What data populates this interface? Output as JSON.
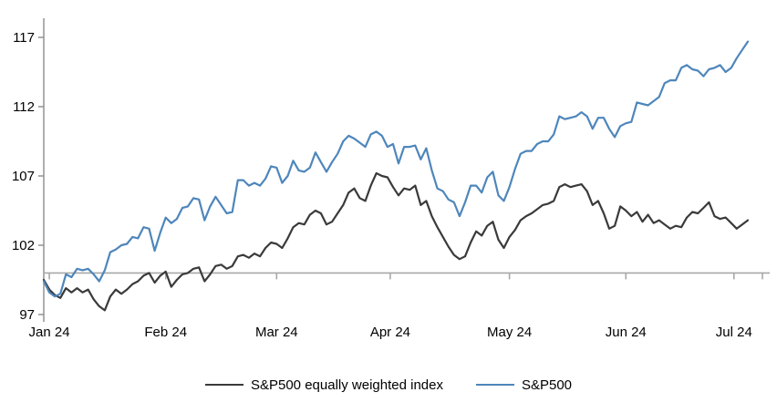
{
  "chart_data": {
    "type": "line",
    "title": "",
    "xlabel": "",
    "ylabel": "",
    "grid": "off",
    "legend_position": "bottom-center",
    "baseline_value": 100,
    "y_ticks": [
      97,
      102,
      107,
      112,
      117
    ],
    "ylim": [
      97,
      117
    ],
    "x_tick_labels": [
      "Jan 24",
      "Feb 24",
      "Mar 24",
      "Apr 24",
      "May 24",
      "Jun 24",
      "Jul 24"
    ],
    "x_tick_days": [
      1,
      22,
      42,
      62.5,
      84,
      105,
      124.5
    ],
    "x_axis_note": "daily index values, Jan 2 2024 = day 0, indexed to 100 at end-2023",
    "series": [
      {
        "name": "S&P500 equally weighted index",
        "color": "#3a3a3a",
        "values": [
          99.5,
          98.8,
          98.4,
          98.2,
          98.9,
          98.6,
          98.9,
          98.6,
          98.8,
          98.1,
          97.6,
          97.3,
          98.3,
          98.8,
          98.5,
          98.8,
          99.2,
          99.4,
          99.8,
          100.0,
          99.3,
          99.8,
          100.1,
          99.0,
          99.5,
          99.9,
          100.0,
          100.3,
          100.4,
          99.4,
          99.9,
          100.5,
          100.6,
          100.3,
          100.5,
          101.2,
          101.3,
          101.1,
          101.4,
          101.2,
          101.8,
          102.2,
          102.1,
          101.8,
          102.5,
          103.3,
          103.6,
          103.5,
          104.2,
          104.5,
          104.3,
          103.5,
          103.7,
          104.3,
          104.9,
          105.8,
          106.1,
          105.4,
          105.2,
          106.3,
          107.2,
          107.0,
          106.9,
          106.2,
          105.6,
          106.1,
          106.0,
          106.3,
          104.9,
          105.2,
          104.1,
          103.3,
          102.6,
          101.9,
          101.3,
          101.0,
          101.2,
          102.2,
          103.0,
          102.7,
          103.4,
          103.7,
          102.4,
          101.8,
          102.6,
          103.1,
          103.8,
          104.1,
          104.3,
          104.6,
          104.9,
          105.0,
          105.2,
          106.2,
          106.4,
          106.2,
          106.3,
          106.4,
          105.9,
          104.9,
          105.2,
          104.3,
          103.2,
          103.4,
          104.8,
          104.5,
          104.1,
          104.4,
          103.7,
          104.2,
          103.6,
          103.8,
          103.5,
          103.2,
          103.4,
          103.3,
          104.0,
          104.4,
          104.3,
          104.7,
          105.1,
          104.1,
          103.9,
          104.0,
          103.6,
          103.2,
          103.5,
          103.8
        ]
      },
      {
        "name": "S&P500",
        "color": "#4e86bb",
        "values": [
          99.4,
          98.6,
          98.3,
          98.5,
          99.9,
          99.7,
          100.3,
          100.2,
          100.3,
          99.9,
          99.4,
          100.2,
          101.5,
          101.7,
          102.0,
          102.1,
          102.6,
          102.5,
          103.3,
          103.2,
          101.6,
          102.9,
          104.0,
          103.6,
          103.9,
          104.7,
          104.8,
          105.4,
          105.3,
          103.8,
          104.8,
          105.5,
          104.9,
          104.3,
          104.4,
          106.7,
          106.7,
          106.3,
          106.5,
          106.3,
          106.8,
          107.7,
          107.6,
          106.5,
          107.0,
          108.1,
          107.4,
          107.3,
          107.6,
          108.7,
          108.0,
          107.3,
          108.0,
          108.6,
          109.5,
          109.9,
          109.7,
          109.4,
          109.1,
          110.0,
          110.2,
          109.9,
          109.1,
          109.3,
          107.9,
          109.1,
          109.1,
          109.2,
          108.2,
          109.0,
          107.4,
          106.1,
          105.9,
          105.3,
          105.1,
          104.1,
          105.1,
          106.3,
          106.3,
          105.8,
          106.9,
          107.3,
          105.6,
          105.2,
          106.2,
          107.5,
          108.6,
          108.8,
          108.8,
          109.3,
          109.5,
          109.5,
          110.0,
          111.3,
          111.1,
          111.2,
          111.3,
          111.6,
          111.3,
          110.4,
          111.2,
          111.2,
          110.4,
          109.8,
          110.6,
          110.8,
          110.9,
          112.3,
          112.2,
          112.1,
          112.4,
          112.7,
          113.7,
          113.9,
          113.9,
          114.8,
          115.0,
          114.7,
          114.6,
          114.2,
          114.7,
          114.8,
          115.0,
          114.5,
          114.8,
          115.5,
          116.1,
          116.7
        ]
      }
    ],
    "colors": {
      "axis_spine": "#8c8c8c",
      "baseline": "#a8a8a8",
      "tick_text": "#000000"
    }
  },
  "legend": {
    "items": [
      {
        "label": "S&P500 equally weighted index"
      },
      {
        "label": "S&P500"
      }
    ]
  }
}
